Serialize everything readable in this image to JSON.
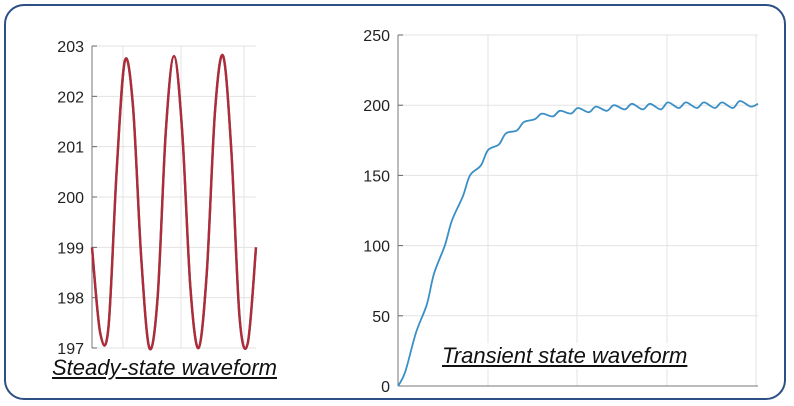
{
  "chart_data": [
    {
      "type": "line",
      "caption": "Steady-state waveform",
      "ylim": [
        197,
        203
      ],
      "yticks": [
        197,
        198,
        199,
        200,
        201,
        202,
        203
      ],
      "xlabel": "",
      "ylabel": "",
      "grid": true,
      "series": [
        {
          "color": "#2e8b6e",
          "x": [
            0,
            0.05,
            0.1,
            0.15,
            0.2,
            0.25,
            0.3,
            0.35,
            0.4,
            0.45,
            0.5,
            0.55,
            0.6,
            0.65,
            0.7,
            0.75,
            0.8,
            0.85,
            0.9,
            0.95,
            1
          ],
          "y": [
            199.0,
            197.3,
            197.4,
            200.5,
            202.7,
            201.8,
            198.8,
            197.0,
            198.0,
            201.3,
            202.8,
            201.3,
            198.2,
            197.0,
            198.5,
            201.7,
            202.8,
            200.9,
            197.6,
            197.1,
            199.0
          ]
        },
        {
          "color": "#b02a3a",
          "x": [
            0,
            0.05,
            0.1,
            0.15,
            0.2,
            0.25,
            0.3,
            0.35,
            0.4,
            0.45,
            0.5,
            0.55,
            0.6,
            0.65,
            0.7,
            0.75,
            0.8,
            0.85,
            0.9,
            0.95,
            1
          ],
          "y": [
            199.0,
            197.3,
            197.4,
            200.5,
            202.7,
            201.8,
            198.8,
            197.0,
            198.0,
            201.3,
            202.8,
            201.3,
            198.2,
            197.0,
            198.5,
            201.7,
            202.8,
            200.9,
            197.6,
            197.1,
            199.0
          ]
        }
      ]
    },
    {
      "type": "line",
      "caption": "Transient state waveform",
      "ylim": [
        0,
        250
      ],
      "yticks": [
        0,
        50,
        100,
        150,
        200,
        250
      ],
      "xlabel": "",
      "ylabel": "",
      "grid": true,
      "series": [
        {
          "color": "#3a8fc6",
          "x": [
            0,
            0.02,
            0.05,
            0.08,
            0.1,
            0.13,
            0.15,
            0.18,
            0.2,
            0.23,
            0.25,
            0.28,
            0.3,
            0.33,
            0.35,
            0.38,
            0.4,
            0.43,
            0.45,
            0.48,
            0.5,
            0.53,
            0.55,
            0.58,
            0.6,
            0.63,
            0.65,
            0.68,
            0.7,
            0.73,
            0.75,
            0.78,
            0.8,
            0.83,
            0.85,
            0.88,
            0.9,
            0.93,
            0.95,
            0.98,
            1
          ],
          "y": [
            0,
            10,
            38,
            58,
            80,
            100,
            118,
            135,
            150,
            157,
            168,
            172,
            180,
            182,
            188,
            190,
            194,
            192,
            196,
            194,
            198,
            195,
            199,
            196,
            200,
            197,
            201,
            197,
            201,
            197,
            202,
            198,
            202,
            198,
            202,
            198,
            202,
            198,
            203,
            199,
            201
          ]
        }
      ]
    }
  ]
}
